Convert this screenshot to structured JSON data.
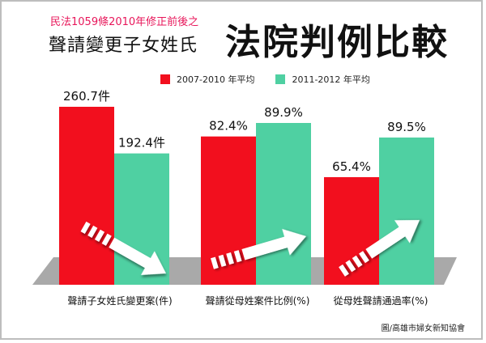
{
  "header": {
    "line1": "民法1059條2010年修正前後之",
    "line2": "聲請變更子女姓氏",
    "big": "法院判例比較"
  },
  "legend": [
    {
      "label": "2007-2010 年平均",
      "color": "#f20f1e"
    },
    {
      "label": "2011-2012 年平均",
      "color": "#4fd0a2"
    }
  ],
  "credit": "圖/高雄市婦女新知協會",
  "chart_data": {
    "type": "bar",
    "groups": [
      {
        "category": "聲請子女姓氏變更案(件)",
        "values": [
          260.7,
          192.4
        ],
        "labels": [
          "260.7件",
          "192.4件"
        ],
        "trend": "down"
      },
      {
        "category": "聲請從母姓案件比例(%)",
        "values": [
          82.4,
          89.9
        ],
        "labels": [
          "82.4%",
          "89.9%"
        ],
        "trend": "up"
      },
      {
        "category": "從母姓聲請通過率(%)",
        "values": [
          65.4,
          89.5
        ],
        "labels": [
          "65.4%",
          "89.5%"
        ],
        "trend": "up"
      }
    ],
    "series": [
      {
        "name": "2007-2010 年平均",
        "color": "#f20f1e"
      },
      {
        "name": "2011-2012 年平均",
        "color": "#4fd0a2"
      }
    ],
    "floor_color": "#a9a9a9"
  }
}
